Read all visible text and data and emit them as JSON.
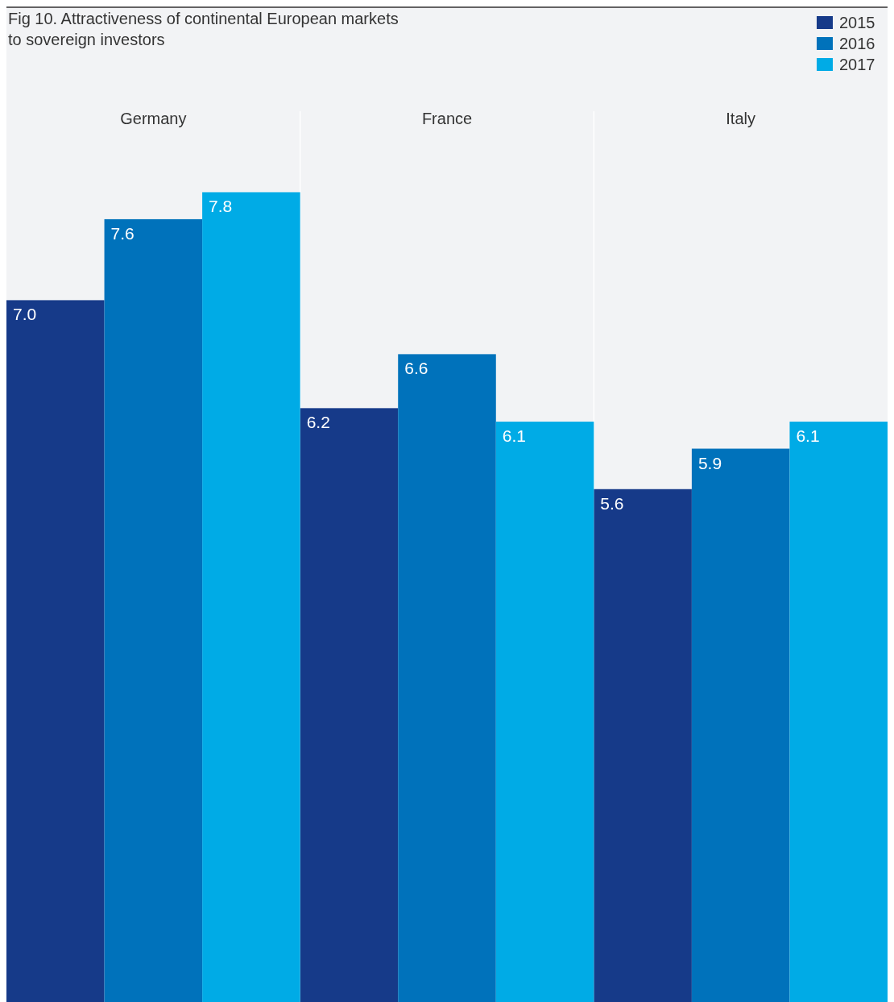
{
  "chart_data": {
    "type": "bar",
    "title": "Fig 10. Attractiveness of continental European markets\nto sovereign investors",
    "categories": [
      "Germany",
      "France",
      "Italy"
    ],
    "series": [
      {
        "name": "2015",
        "color": "#163a89",
        "values": [
          7.0,
          6.2,
          5.6
        ],
        "value_labels": [
          "7.0",
          "6.2",
          "5.6"
        ]
      },
      {
        "name": "2016",
        "color": "#0072bb",
        "values": [
          7.6,
          6.6,
          5.9
        ],
        "value_labels": [
          "7.6",
          "6.6",
          "5.9"
        ]
      },
      {
        "name": "2017",
        "color": "#00abe6",
        "values": [
          7.8,
          6.1,
          6.1
        ],
        "value_labels": [
          "7.8",
          "6.1",
          "6.1"
        ]
      }
    ],
    "ylim": [
      1.8,
      8.4
    ],
    "legend": "top right"
  }
}
